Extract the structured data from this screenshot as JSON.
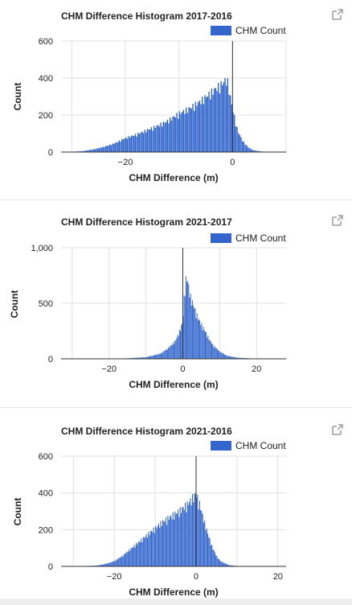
{
  "colors": {
    "bar": "#3366cc",
    "grid": "#e0e0e0",
    "axis": "#333333",
    "icon": "#aaaaaa"
  },
  "icons": {
    "popout": "open-in-new-icon"
  },
  "chart_data": [
    {
      "type": "bar",
      "title": "CHM Difference Histogram 2017-2016",
      "xlabel": "CHM Difference (m)",
      "ylabel": "Count",
      "legend": {
        "label": "CHM Count",
        "position": "top-right"
      },
      "xlim": [
        -32,
        10
      ],
      "ylim": [
        0,
        600
      ],
      "xticks": [
        -20,
        0
      ],
      "yticks": [
        0,
        200,
        400,
        600
      ],
      "ytick_labels": [
        "0",
        "200",
        "400",
        "600"
      ],
      "bin_width": 0.25,
      "x": [
        -30,
        -28,
        -26,
        -24,
        -22,
        -20,
        -18,
        -16,
        -14,
        -12,
        -10,
        -8,
        -6,
        -4,
        -2,
        -1,
        0,
        1,
        2,
        3,
        4,
        5,
        6,
        7
      ],
      "values": [
        2,
        5,
        15,
        30,
        50,
        80,
        100,
        125,
        150,
        180,
        220,
        250,
        290,
        340,
        390,
        420,
        250,
        120,
        60,
        25,
        10,
        5,
        2,
        0
      ]
    },
    {
      "type": "bar",
      "title": "CHM Difference Histogram 2021-2017",
      "xlabel": "CHM Difference (m)",
      "ylabel": "Count",
      "legend": {
        "label": "CHM Count",
        "position": "top-right"
      },
      "xlim": [
        -33,
        28
      ],
      "ylim": [
        0,
        1000
      ],
      "xticks": [
        -20,
        0,
        20
      ],
      "yticks": [
        0,
        500,
        1000
      ],
      "ytick_labels": [
        "0",
        "500",
        "1,000"
      ],
      "bin_width": 0.25,
      "x": [
        -30,
        -20,
        -15,
        -10,
        -6,
        -4,
        -2,
        -1,
        0,
        0.5,
        1,
        1.5,
        2,
        3,
        4,
        5,
        6,
        7,
        8,
        10,
        12,
        15,
        20,
        25
      ],
      "values": [
        0,
        2,
        5,
        15,
        50,
        100,
        170,
        250,
        350,
        650,
        780,
        720,
        600,
        500,
        400,
        330,
        270,
        200,
        140,
        70,
        30,
        10,
        2,
        0
      ]
    },
    {
      "type": "bar",
      "title": "CHM Difference Histogram 2021-2016",
      "xlabel": "CHM Difference (m)",
      "ylabel": "Count",
      "legend": {
        "label": "CHM Count",
        "position": "top-right"
      },
      "xlim": [
        -33,
        22
      ],
      "ylim": [
        0,
        600
      ],
      "xticks": [
        -20,
        0,
        20
      ],
      "yticks": [
        0,
        200,
        400,
        600
      ],
      "ytick_labels": [
        "0",
        "200",
        "400",
        "600"
      ],
      "bin_width": 0.25,
      "x": [
        -30,
        -24,
        -22,
        -20,
        -18,
        -16,
        -14,
        -12,
        -10,
        -8,
        -6,
        -4,
        -2,
        -1,
        0,
        1,
        2,
        3,
        4,
        5,
        6,
        8,
        10,
        14
      ],
      "values": [
        0,
        5,
        15,
        30,
        60,
        100,
        140,
        180,
        220,
        260,
        290,
        320,
        360,
        390,
        420,
        350,
        260,
        180,
        110,
        60,
        30,
        8,
        2,
        0
      ]
    }
  ]
}
